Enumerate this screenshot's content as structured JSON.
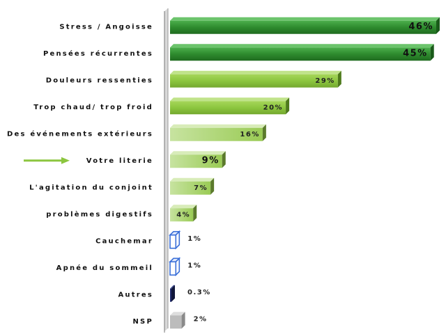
{
  "chart_data": {
    "type": "bar",
    "orientation": "horizontal",
    "title": "",
    "xlabel": "",
    "ylabel": "",
    "categories": [
      "Stress / Angoisse",
      "Pensées récurrentes",
      "Douleurs ressenties",
      "Trop chaud/ trop froid",
      "Des événements extérieurs",
      "Votre literie",
      "L'agitation du conjoint",
      "problèmes digestifs",
      "Cauchemar",
      "Apnée du sommeil",
      "Autres",
      "NSP"
    ],
    "values": [
      46,
      45,
      29,
      20,
      16,
      9,
      7,
      4,
      1,
      1,
      0.3,
      2
    ],
    "labels": [
      "46%",
      "45%",
      "29%",
      "20%",
      "16%",
      "9%",
      "7%",
      "4%",
      "1%",
      "1%",
      "0.3%",
      "2%"
    ],
    "xlim": [
      0,
      46
    ],
    "grid": false,
    "legend": "none",
    "highlighted_category": "Votre literie",
    "colors": {
      "dark_green": "#2e8b2e",
      "light_green": "#8cc63f",
      "pale_green": "#b5d97a",
      "blue_outline": "#3a6fd8",
      "navy": "#1f2a6b",
      "gray": "#bcbcbc",
      "arrow": "#8cc63f"
    }
  }
}
